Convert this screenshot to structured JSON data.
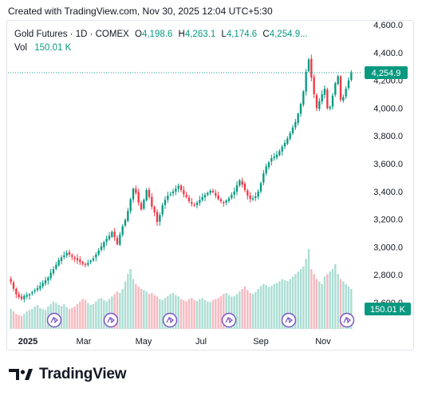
{
  "header": {
    "text": "Created with TradingView.com, Nov 30, 2025 12:04 UTC+5:30"
  },
  "legend": {
    "symbol": "Gold Futures · 1D · COMEX",
    "open_label": "O",
    "open": "4,198.6",
    "high_label": "H",
    "high": "4,263.1",
    "low_label": "L",
    "low": "4,174.6",
    "close_label": "C",
    "close": "4,254.9...",
    "vol_label": "Vol",
    "vol": "150.01 K"
  },
  "footer": {
    "brand": "TradingView"
  },
  "colors": {
    "up": "#089981",
    "down": "#f23645",
    "vol_up": "#a9dcd2",
    "vol_down": "#f7b7bd",
    "event": "#7e57c2"
  },
  "chart_data": {
    "type": "candlestick",
    "y_ticks": [
      "4,600.0",
      "4,400.0",
      "4,200.0",
      "4,000.0",
      "3,800.0",
      "3,600.0",
      "3,400.0",
      "3,200.0",
      "3,000.0",
      "2,800.0",
      "2,600.0"
    ],
    "ylim": [
      2600,
      4600
    ],
    "x_ticks": [
      "2025",
      "Mar",
      "May",
      "Jul",
      "Sep",
      "Nov"
    ],
    "last_price_label": "4,254.9",
    "last_price": 4254.9,
    "volume_label": "150.01 K",
    "event_markers": 6,
    "closes": [
      2750,
      2700,
      2660,
      2640,
      2625,
      2648,
      2655,
      2660,
      2675,
      2690,
      2705,
      2720,
      2742,
      2760,
      2780,
      2815,
      2840,
      2872,
      2905,
      2925,
      2940,
      2958,
      2945,
      2930,
      2915,
      2905,
      2892,
      2880,
      2870,
      2885,
      2902,
      2918,
      2945,
      2975,
      3005,
      3035,
      3060,
      3080,
      3110,
      3070,
      3020,
      3090,
      3150,
      3195,
      3260,
      3345,
      3420,
      3390,
      3320,
      3270,
      3340,
      3410,
      3360,
      3290,
      3250,
      3180,
      3230,
      3300,
      3340,
      3370,
      3380,
      3400,
      3420,
      3440,
      3410,
      3380,
      3360,
      3330,
      3310,
      3300,
      3320,
      3340,
      3360,
      3375,
      3390,
      3405,
      3395,
      3370,
      3345,
      3330,
      3315,
      3335,
      3350,
      3375,
      3400,
      3445,
      3480,
      3450,
      3410,
      3370,
      3345,
      3350,
      3365,
      3400,
      3460,
      3530,
      3580,
      3610,
      3640,
      3650,
      3665,
      3690,
      3720,
      3750,
      3780,
      3820,
      3860,
      3900,
      3960,
      4030,
      4120,
      4260,
      4350,
      4220,
      4100,
      4000,
      4050,
      4100,
      4140,
      4000,
      4010,
      4090,
      4180,
      4230,
      4060,
      4080,
      4140,
      4200,
      4254.9
    ],
    "volumes": [
      40,
      35,
      30,
      28,
      26,
      30,
      35,
      38,
      40,
      45,
      48,
      42,
      40,
      38,
      45,
      50,
      55,
      52,
      48,
      46,
      50,
      44,
      40,
      42,
      45,
      50,
      55,
      60,
      58,
      52,
      48,
      50,
      55,
      60,
      62,
      58,
      55,
      60,
      65,
      70,
      75,
      72,
      80,
      95,
      110,
      120,
      100,
      90,
      85,
      80,
      78,
      75,
      70,
      72,
      68,
      65,
      60,
      58,
      62,
      66,
      70,
      72,
      68,
      65,
      60,
      58,
      55,
      60,
      62,
      58,
      56,
      60,
      62,
      58,
      55,
      54,
      58,
      60,
      62,
      66,
      70,
      72,
      68,
      65,
      66,
      70,
      75,
      80,
      85,
      78,
      72,
      70,
      74,
      80,
      86,
      90,
      88,
      84,
      86,
      90,
      92,
      95,
      100,
      98,
      96,
      100,
      105,
      110,
      115,
      120,
      125,
      140,
      160,
      120,
      110,
      100,
      95,
      90,
      105,
      110,
      115,
      120,
      130,
      110,
      100,
      95,
      90,
      85,
      80
    ]
  }
}
